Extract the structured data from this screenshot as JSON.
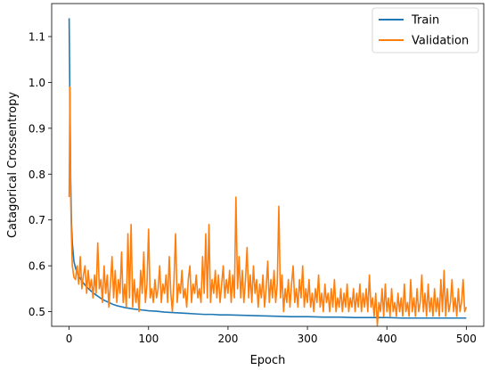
{
  "chart_data": {
    "type": "line",
    "title": "",
    "xlabel": "Epoch",
    "ylabel": "Catagorical Crossentropy",
    "xlim": [
      -22,
      522
    ],
    "ylim": [
      0.468,
      1.172
    ],
    "xticks": [
      0,
      100,
      200,
      300,
      400,
      500
    ],
    "yticks": [
      0.5,
      0.6,
      0.7,
      0.8,
      0.9,
      1.0,
      1.1
    ],
    "legend_position": "top-right",
    "grid": false,
    "series": [
      {
        "name": "Train",
        "color": "#1f77b4",
        "points": [
          [
            0,
            1.14
          ],
          [
            1,
            0.95
          ],
          [
            2,
            0.78
          ],
          [
            3,
            0.69
          ],
          [
            4,
            0.65
          ],
          [
            6,
            0.61
          ],
          [
            8,
            0.595
          ],
          [
            10,
            0.585
          ],
          [
            13,
            0.575
          ],
          [
            16,
            0.567
          ],
          [
            20,
            0.558
          ],
          [
            25,
            0.549
          ],
          [
            30,
            0.541
          ],
          [
            35,
            0.535
          ],
          [
            40,
            0.529
          ],
          [
            45,
            0.524
          ],
          [
            50,
            0.52
          ],
          [
            55,
            0.516
          ],
          [
            60,
            0.513
          ],
          [
            70,
            0.509
          ],
          [
            80,
            0.506
          ],
          [
            90,
            0.504
          ],
          [
            100,
            0.502
          ],
          [
            110,
            0.501
          ],
          [
            120,
            0.499
          ],
          [
            130,
            0.498
          ],
          [
            140,
            0.497
          ],
          [
            150,
            0.496
          ],
          [
            160,
            0.495
          ],
          [
            170,
            0.494
          ],
          [
            180,
            0.494
          ],
          [
            190,
            0.493
          ],
          [
            200,
            0.493
          ],
          [
            220,
            0.492
          ],
          [
            240,
            0.491
          ],
          [
            260,
            0.49
          ],
          [
            280,
            0.489
          ],
          [
            300,
            0.489
          ],
          [
            320,
            0.488
          ],
          [
            340,
            0.488
          ],
          [
            360,
            0.487
          ],
          [
            380,
            0.487
          ],
          [
            400,
            0.487
          ],
          [
            420,
            0.486
          ],
          [
            440,
            0.486
          ],
          [
            460,
            0.486
          ],
          [
            480,
            0.486
          ],
          [
            500,
            0.486
          ]
        ]
      },
      {
        "name": "Validation",
        "color": "#ff7f0e",
        "points": [
          [
            0,
            0.75
          ],
          [
            1,
            0.99
          ],
          [
            2,
            0.74
          ],
          [
            3,
            0.66
          ],
          [
            4,
            0.6
          ],
          [
            6,
            0.575
          ],
          [
            8,
            0.57
          ],
          [
            10,
            0.6
          ],
          [
            12,
            0.56
          ],
          [
            14,
            0.62
          ],
          [
            16,
            0.55
          ],
          [
            18,
            0.58
          ],
          [
            20,
            0.6
          ],
          [
            22,
            0.54
          ],
          [
            24,
            0.59
          ],
          [
            26,
            0.55
          ],
          [
            28,
            0.57
          ],
          [
            30,
            0.53
          ],
          [
            32,
            0.58
          ],
          [
            34,
            0.54
          ],
          [
            36,
            0.65
          ],
          [
            38,
            0.55
          ],
          [
            40,
            0.57
          ],
          [
            42,
            0.52
          ],
          [
            44,
            0.6
          ],
          [
            46,
            0.54
          ],
          [
            48,
            0.58
          ],
          [
            50,
            0.51
          ],
          [
            52,
            0.56
          ],
          [
            54,
            0.62
          ],
          [
            56,
            0.53
          ],
          [
            58,
            0.59
          ],
          [
            60,
            0.52
          ],
          [
            62,
            0.57
          ],
          [
            64,
            0.54
          ],
          [
            66,
            0.63
          ],
          [
            68,
            0.52
          ],
          [
            70,
            0.56
          ],
          [
            72,
            0.51
          ],
          [
            74,
            0.67
          ],
          [
            76,
            0.53
          ],
          [
            78,
            0.69
          ],
          [
            80,
            0.51
          ],
          [
            82,
            0.57
          ],
          [
            84,
            0.52
          ],
          [
            86,
            0.55
          ],
          [
            88,
            0.5
          ],
          [
            90,
            0.59
          ],
          [
            92,
            0.54
          ],
          [
            94,
            0.63
          ],
          [
            96,
            0.52
          ],
          [
            98,
            0.56
          ],
          [
            100,
            0.68
          ],
          [
            102,
            0.53
          ],
          [
            104,
            0.55
          ],
          [
            106,
            0.52
          ],
          [
            108,
            0.57
          ],
          [
            110,
            0.53
          ],
          [
            112,
            0.55
          ],
          [
            114,
            0.6
          ],
          [
            116,
            0.52
          ],
          [
            118,
            0.56
          ],
          [
            120,
            0.54
          ],
          [
            122,
            0.58
          ],
          [
            124,
            0.52
          ],
          [
            126,
            0.62
          ],
          [
            128,
            0.54
          ],
          [
            130,
            0.5
          ],
          [
            132,
            0.57
          ],
          [
            134,
            0.67
          ],
          [
            136,
            0.52
          ],
          [
            138,
            0.56
          ],
          [
            140,
            0.54
          ],
          [
            142,
            0.59
          ],
          [
            144,
            0.53
          ],
          [
            146,
            0.55
          ],
          [
            148,
            0.51
          ],
          [
            150,
            0.57
          ],
          [
            152,
            0.6
          ],
          [
            154,
            0.52
          ],
          [
            156,
            0.56
          ],
          [
            158,
            0.54
          ],
          [
            160,
            0.58
          ],
          [
            162,
            0.53
          ],
          [
            164,
            0.55
          ],
          [
            166,
            0.52
          ],
          [
            168,
            0.62
          ],
          [
            170,
            0.54
          ],
          [
            172,
            0.67
          ],
          [
            174,
            0.53
          ],
          [
            176,
            0.69
          ],
          [
            178,
            0.52
          ],
          [
            180,
            0.57
          ],
          [
            182,
            0.54
          ],
          [
            184,
            0.59
          ],
          [
            186,
            0.53
          ],
          [
            188,
            0.58
          ],
          [
            190,
            0.52
          ],
          [
            192,
            0.56
          ],
          [
            194,
            0.6
          ],
          [
            196,
            0.53
          ],
          [
            198,
            0.57
          ],
          [
            200,
            0.54
          ],
          [
            202,
            0.59
          ],
          [
            204,
            0.52
          ],
          [
            206,
            0.58
          ],
          [
            208,
            0.53
          ],
          [
            210,
            0.75
          ],
          [
            212,
            0.55
          ],
          [
            214,
            0.62
          ],
          [
            216,
            0.53
          ],
          [
            218,
            0.59
          ],
          [
            220,
            0.52
          ],
          [
            222,
            0.57
          ],
          [
            224,
            0.64
          ],
          [
            226,
            0.53
          ],
          [
            228,
            0.58
          ],
          [
            230,
            0.52
          ],
          [
            232,
            0.6
          ],
          [
            234,
            0.54
          ],
          [
            236,
            0.57
          ],
          [
            238,
            0.51
          ],
          [
            240,
            0.56
          ],
          [
            242,
            0.53
          ],
          [
            244,
            0.58
          ],
          [
            246,
            0.51
          ],
          [
            248,
            0.55
          ],
          [
            250,
            0.61
          ],
          [
            252,
            0.52
          ],
          [
            254,
            0.57
          ],
          [
            256,
            0.53
          ],
          [
            258,
            0.59
          ],
          [
            260,
            0.52
          ],
          [
            262,
            0.56
          ],
          [
            264,
            0.73
          ],
          [
            266,
            0.53
          ],
          [
            268,
            0.58
          ],
          [
            270,
            0.5
          ],
          [
            272,
            0.55
          ],
          [
            274,
            0.52
          ],
          [
            276,
            0.57
          ],
          [
            278,
            0.51
          ],
          [
            280,
            0.56
          ],
          [
            282,
            0.6
          ],
          [
            284,
            0.52
          ],
          [
            286,
            0.55
          ],
          [
            288,
            0.51
          ],
          [
            290,
            0.57
          ],
          [
            292,
            0.53
          ],
          [
            294,
            0.6
          ],
          [
            296,
            0.51
          ],
          [
            298,
            0.55
          ],
          [
            300,
            0.52
          ],
          [
            302,
            0.57
          ],
          [
            304,
            0.51
          ],
          [
            306,
            0.54
          ],
          [
            308,
            0.5
          ],
          [
            310,
            0.55
          ],
          [
            312,
            0.52
          ],
          [
            314,
            0.58
          ],
          [
            316,
            0.51
          ],
          [
            318,
            0.54
          ],
          [
            320,
            0.5
          ],
          [
            322,
            0.56
          ],
          [
            324,
            0.52
          ],
          [
            326,
            0.54
          ],
          [
            328,
            0.5
          ],
          [
            330,
            0.55
          ],
          [
            332,
            0.51
          ],
          [
            334,
            0.57
          ],
          [
            336,
            0.5
          ],
          [
            338,
            0.53
          ],
          [
            340,
            0.51
          ],
          [
            342,
            0.55
          ],
          [
            344,
            0.5
          ],
          [
            346,
            0.54
          ],
          [
            348,
            0.51
          ],
          [
            350,
            0.56
          ],
          [
            352,
            0.5
          ],
          [
            354,
            0.53
          ],
          [
            356,
            0.51
          ],
          [
            358,
            0.55
          ],
          [
            360,
            0.5
          ],
          [
            362,
            0.54
          ],
          [
            364,
            0.51
          ],
          [
            366,
            0.56
          ],
          [
            368,
            0.5
          ],
          [
            370,
            0.54
          ],
          [
            372,
            0.51
          ],
          [
            374,
            0.55
          ],
          [
            376,
            0.5
          ],
          [
            378,
            0.58
          ],
          [
            380,
            0.51
          ],
          [
            382,
            0.53
          ],
          [
            384,
            0.49
          ],
          [
            386,
            0.54
          ],
          [
            388,
            0.47
          ],
          [
            390,
            0.52
          ],
          [
            392,
            0.5
          ],
          [
            394,
            0.55
          ],
          [
            396,
            0.49
          ],
          [
            398,
            0.56
          ],
          [
            400,
            0.5
          ],
          [
            402,
            0.53
          ],
          [
            404,
            0.49
          ],
          [
            406,
            0.55
          ],
          [
            408,
            0.5
          ],
          [
            410,
            0.52
          ],
          [
            412,
            0.49
          ],
          [
            414,
            0.54
          ],
          [
            416,
            0.5
          ],
          [
            418,
            0.53
          ],
          [
            420,
            0.49
          ],
          [
            422,
            0.56
          ],
          [
            424,
            0.5
          ],
          [
            426,
            0.52
          ],
          [
            428,
            0.49
          ],
          [
            430,
            0.57
          ],
          [
            432,
            0.5
          ],
          [
            434,
            0.53
          ],
          [
            436,
            0.49
          ],
          [
            438,
            0.55
          ],
          [
            440,
            0.5
          ],
          [
            442,
            0.52
          ],
          [
            444,
            0.58
          ],
          [
            446,
            0.5
          ],
          [
            448,
            0.54
          ],
          [
            450,
            0.49
          ],
          [
            452,
            0.56
          ],
          [
            454,
            0.5
          ],
          [
            456,
            0.53
          ],
          [
            458,
            0.49
          ],
          [
            460,
            0.55
          ],
          [
            462,
            0.5
          ],
          [
            464,
            0.53
          ],
          [
            466,
            0.49
          ],
          [
            468,
            0.57
          ],
          [
            470,
            0.5
          ],
          [
            472,
            0.59
          ],
          [
            474,
            0.49
          ],
          [
            476,
            0.55
          ],
          [
            478,
            0.5
          ],
          [
            480,
            0.52
          ],
          [
            482,
            0.57
          ],
          [
            484,
            0.5
          ],
          [
            486,
            0.53
          ],
          [
            488,
            0.49
          ],
          [
            490,
            0.55
          ],
          [
            492,
            0.5
          ],
          [
            494,
            0.52
          ],
          [
            496,
            0.57
          ],
          [
            498,
            0.5
          ],
          [
            500,
            0.51
          ]
        ]
      }
    ]
  }
}
